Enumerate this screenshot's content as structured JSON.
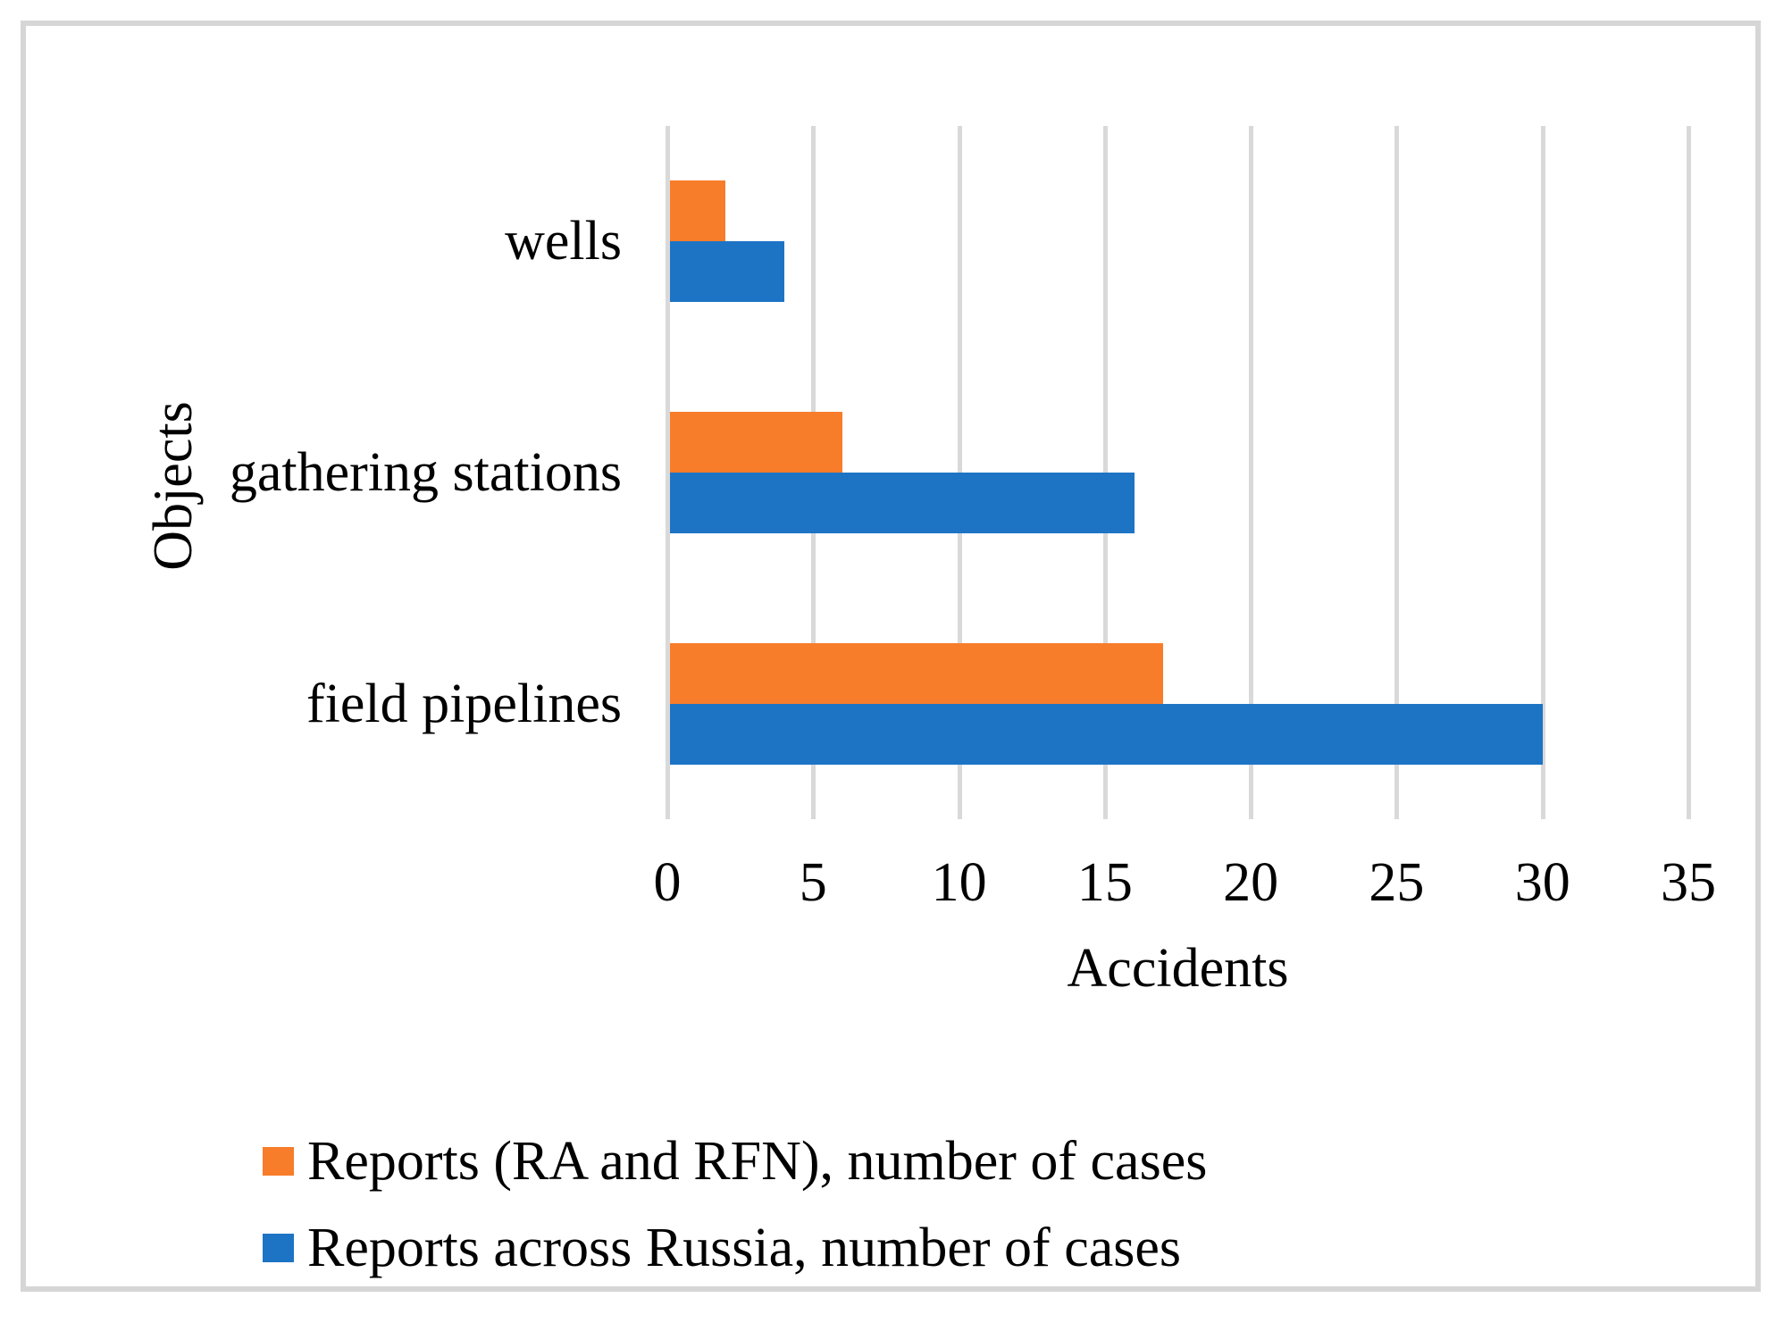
{
  "chart_data": {
    "type": "bar",
    "orientation": "horizontal",
    "title": "",
    "xlabel": "Accidents",
    "ylabel": "Objects",
    "categories": [
      "wells",
      "gathering stations",
      "field pipelines"
    ],
    "series": [
      {
        "name": "Reports (RA and RFN), number of cases",
        "color": "#f87d2a",
        "values": [
          2,
          6,
          17
        ]
      },
      {
        "name": "Reports across Russia, number of cases",
        "color": "#1d74c5",
        "values": [
          4,
          16,
          30
        ]
      }
    ],
    "xlim": [
      0,
      35
    ],
    "xticks": [
      0,
      5,
      10,
      15,
      20,
      25,
      30,
      35
    ],
    "grid": true,
    "grid_color": "#d9d9d9",
    "frame_border_color": "#d6d6d6",
    "legend_position": "bottom-left"
  }
}
